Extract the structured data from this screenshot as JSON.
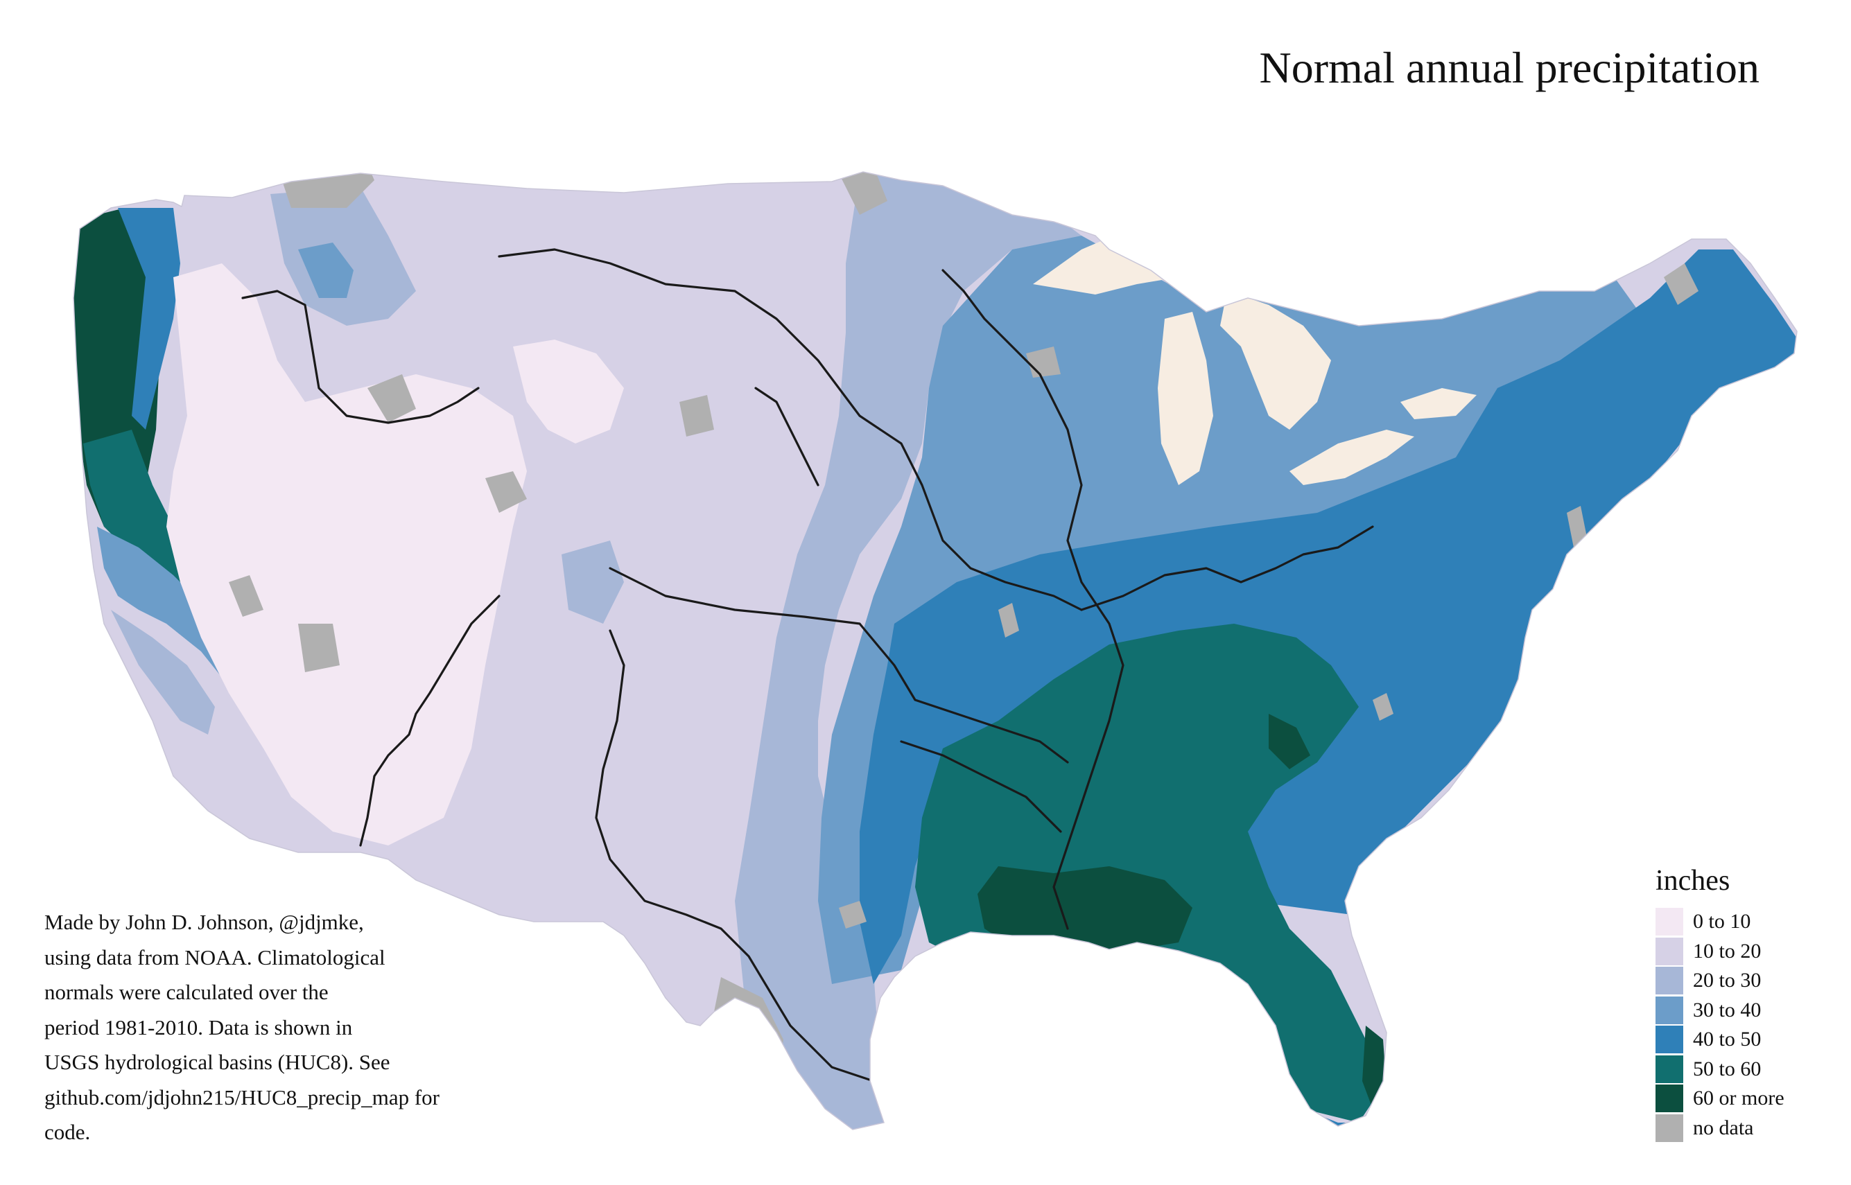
{
  "title": "Normal annual precipitation",
  "credit_lines": [
    "Made by John D. Johnson, @jdjmke,",
    "using data from NOAA. Climatological",
    "normals were calculated over the",
    "period 1981-2010. Data is shown in",
    "USGS hydrological basins (HUC8). See",
    "github.com/jdjohn215/HUC8_precip_map for",
    "code."
  ],
  "legend": {
    "title": "inches",
    "items": [
      {
        "label": "0 to 10",
        "color": "#f3e8f3"
      },
      {
        "label": "10 to 20",
        "color": "#d6d1e6"
      },
      {
        "label": "20 to 30",
        "color": "#a7b7d7"
      },
      {
        "label": "30 to 40",
        "color": "#6c9dc9"
      },
      {
        "label": "40 to 50",
        "color": "#2f80b8"
      },
      {
        "label": "50 to 60",
        "color": "#116f6f"
      },
      {
        "label": "60 or more",
        "color": "#0c4f3f"
      },
      {
        "label": "no data",
        "color": "#b0b0b0"
      }
    ]
  },
  "map_colors": {
    "lakes": "#f7ede2",
    "rivers": "#1a1a1a"
  }
}
